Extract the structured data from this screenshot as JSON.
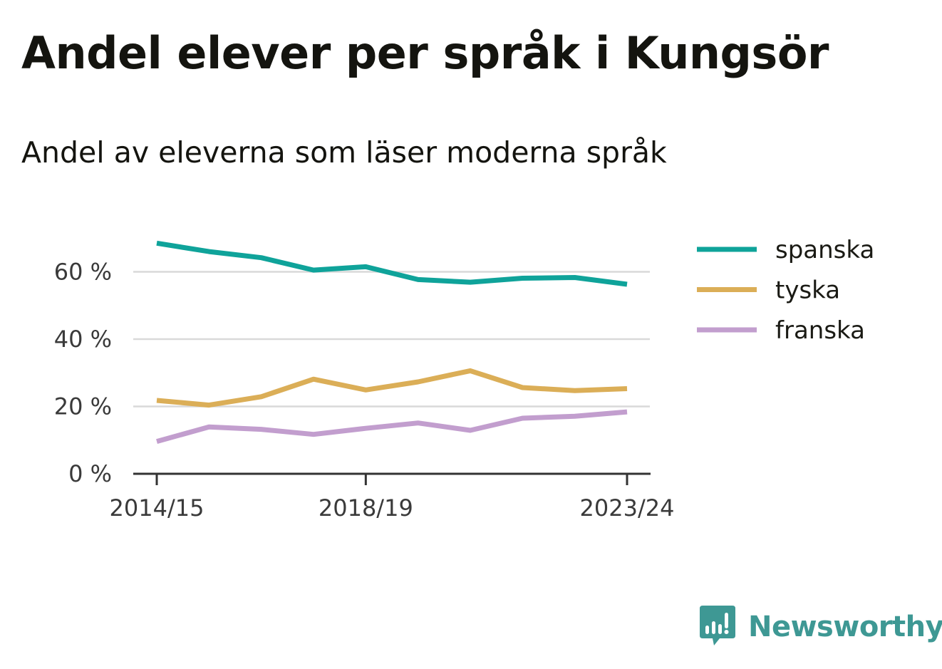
{
  "title": "Andel elever per språk i Kungsör",
  "subtitle": "Andel av eleverna som läser moderna språk",
  "brand": {
    "name": "Newsworthy",
    "color": "#3e9894",
    "icon": "bar-chart-speech-bubble-icon"
  },
  "chart_data": {
    "type": "line",
    "x": [
      "2014/15",
      "2015/16",
      "2016/17",
      "2017/18",
      "2018/19",
      "2019/20",
      "2020/21",
      "2021/22",
      "2022/23",
      "2023/24"
    ],
    "x_tick_labels": [
      "2014/15",
      "2018/19",
      "2023/24"
    ],
    "y_ticks": [
      0,
      20,
      40,
      60
    ],
    "y_tick_labels": [
      "0 %",
      "20 %",
      "40 %",
      "60 %"
    ],
    "ylim": [
      0,
      72
    ],
    "grid": true,
    "legend_position": "right",
    "series": [
      {
        "name": "spanska",
        "color": "#0fa39a",
        "values": [
          68.5,
          66,
          64.2,
          60.5,
          61.5,
          57.7,
          56.9,
          58.1,
          58.3,
          56.3
        ]
      },
      {
        "name": "tyska",
        "color": "#dbae57",
        "values": [
          21.8,
          20.4,
          22.9,
          28.1,
          24.9,
          27.3,
          30.6,
          25.6,
          24.7,
          25.3
        ]
      },
      {
        "name": "franska",
        "color": "#c29ece",
        "values": [
          9.6,
          13.9,
          13.2,
          11.7,
          13.5,
          15.1,
          12.9,
          16.5,
          17.1,
          18.4
        ]
      }
    ]
  }
}
